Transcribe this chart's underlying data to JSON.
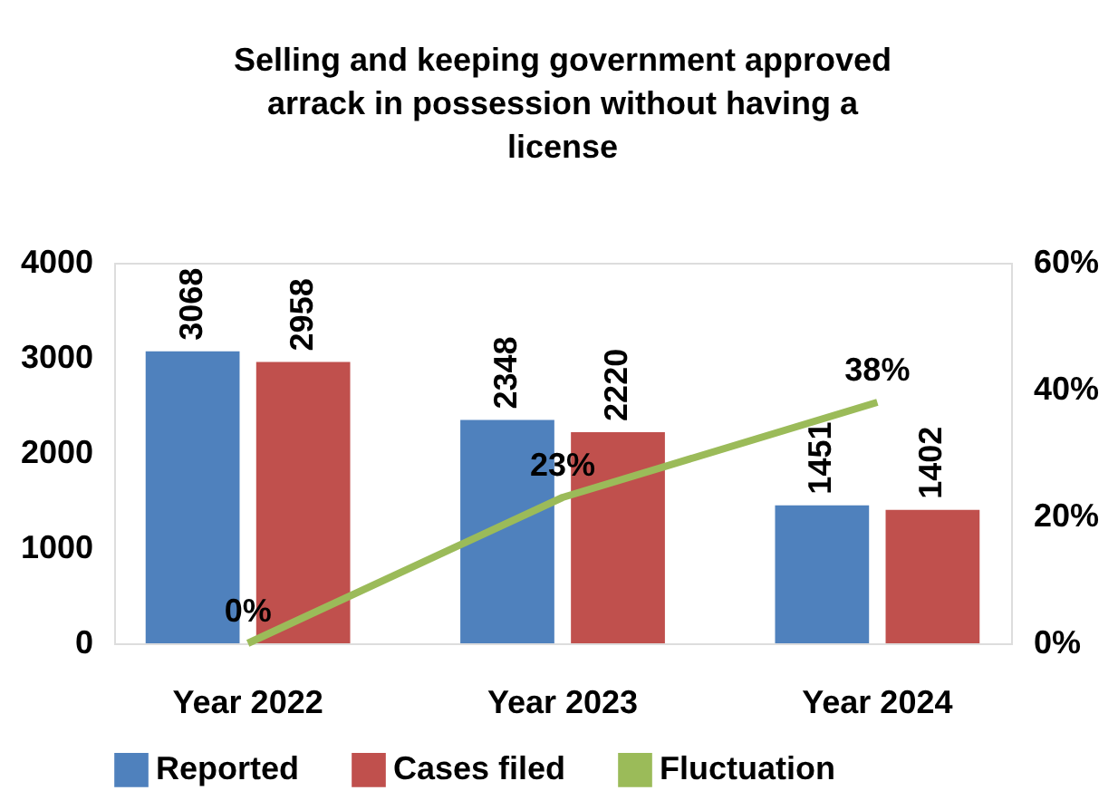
{
  "chart_data": {
    "type": "bar",
    "title": "Selling and keeping government approved arrack in possession without having a license",
    "categories": [
      "Year 2022",
      "Year 2023",
      "Year 2024"
    ],
    "series": [
      {
        "name": "Reported",
        "color": "#4f81bd",
        "values": [
          3068,
          2348,
          1451
        ]
      },
      {
        "name": "Cases filed",
        "color": "#c0504d",
        "values": [
          2958,
          2220,
          1402
        ]
      },
      {
        "name": "Fluctuation",
        "color": "#9bbb59",
        "type": "line",
        "axis": "y2",
        "values": [
          0,
          23,
          38
        ],
        "value_labels": [
          "0%",
          "23%",
          "38%"
        ]
      }
    ],
    "data_labels": true,
    "ylim": [
      0,
      4000
    ],
    "yticks": [
      0,
      1000,
      2000,
      3000,
      4000
    ],
    "y2lim": [
      0,
      60
    ],
    "y2ticks": [
      {
        "value": 0,
        "label": "0%"
      },
      {
        "value": 20,
        "label": "20%"
      },
      {
        "value": 40,
        "label": "40%"
      },
      {
        "value": 60,
        "label": "60%"
      }
    ],
    "grid": false,
    "legend": "bottom"
  }
}
